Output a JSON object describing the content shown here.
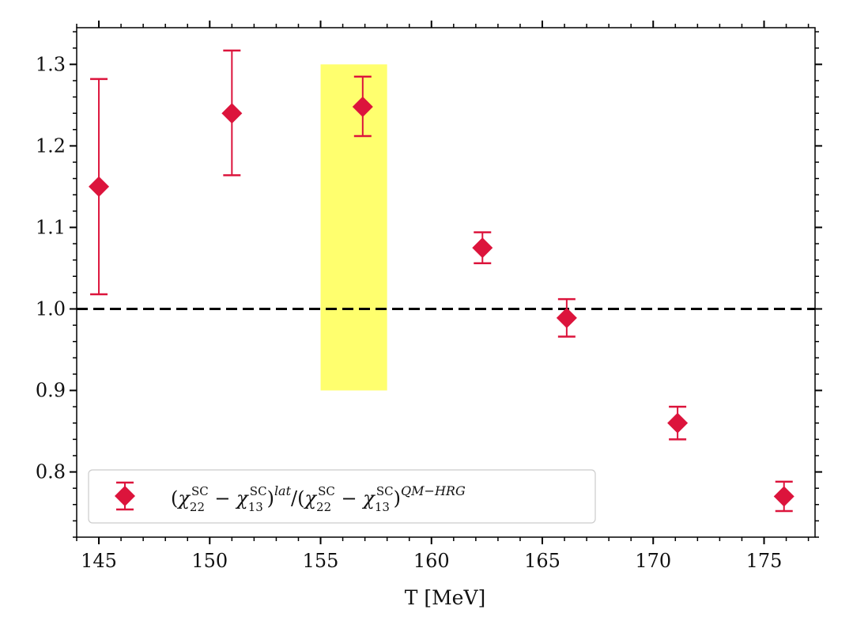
{
  "chart_data": {
    "type": "scatter",
    "xlabel": "T [MeV]",
    "ylabel": "",
    "xlim": [
      144,
      177.3
    ],
    "ylim": [
      0.72,
      1.345
    ],
    "x_ticks": [
      145,
      150,
      155,
      160,
      165,
      170,
      175
    ],
    "x_tick_labels": [
      "145",
      "150",
      "155",
      "160",
      "165",
      "170",
      "175"
    ],
    "y_ticks": [
      0.8,
      0.9,
      1.0,
      1.1,
      1.2,
      1.3
    ],
    "y_tick_labels": [
      "0.8",
      "0.9",
      "1.0",
      "1.1",
      "1.2",
      "1.3"
    ],
    "grid": false,
    "legend_position": "bottom-left",
    "reference_line": {
      "y": 1.0,
      "style": "dashed",
      "color": "#000000"
    },
    "band": {
      "x": [
        155.0,
        158.0
      ],
      "y": [
        0.9,
        1.3
      ],
      "color": "#ffff66"
    },
    "series": [
      {
        "name": "(χ22SC − χ13SC)lat/(χ22SC − χ13SC)QM−HRG",
        "color": "#dc143c",
        "marker": "diamond",
        "x": [
          145.0,
          151.0,
          156.9,
          162.3,
          166.1,
          171.1,
          175.9
        ],
        "y": [
          1.15,
          1.24,
          1.248,
          1.075,
          0.989,
          0.86,
          0.77
        ],
        "err_low": [
          1.018,
          1.164,
          1.212,
          1.056,
          0.966,
          0.84,
          0.752
        ],
        "err_high": [
          1.282,
          1.317,
          1.285,
          1.094,
          1.012,
          0.88,
          0.788
        ]
      }
    ]
  }
}
